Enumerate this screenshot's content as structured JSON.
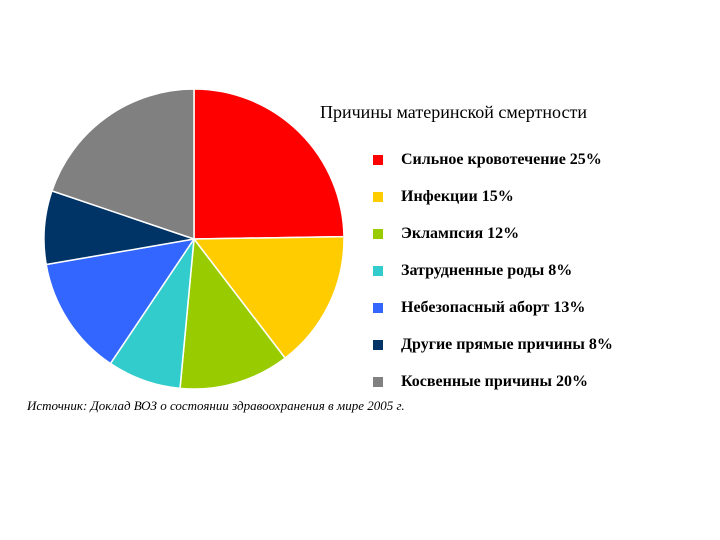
{
  "chart_data": {
    "type": "pie",
    "title": "Причины материнской смертности",
    "legend_position": "right",
    "slices": [
      {
        "label": "Сильное кровотечение 25%",
        "value": 25,
        "color": "#ff0000"
      },
      {
        "label": "Инфекции 15%",
        "value": 15,
        "color": "#ffcc00"
      },
      {
        "label": "Эклампсия 12%",
        "value": 12,
        "color": "#99cc00"
      },
      {
        "label": "Затрудненные роды 8%",
        "value": 8,
        "color": "#33cccc"
      },
      {
        "label": "Небезопасный аборт 13%",
        "value": 13,
        "color": "#3366ff"
      },
      {
        "label": "Другие прямые причины 8%",
        "value": 8,
        "color": "#003366"
      },
      {
        "label": "Косвенные причины 20%",
        "value": 20,
        "color": "#808080"
      }
    ]
  },
  "source_note": "Источник: Доклад ВОЗ о состоянии здравоохранения в мире 2005 г."
}
